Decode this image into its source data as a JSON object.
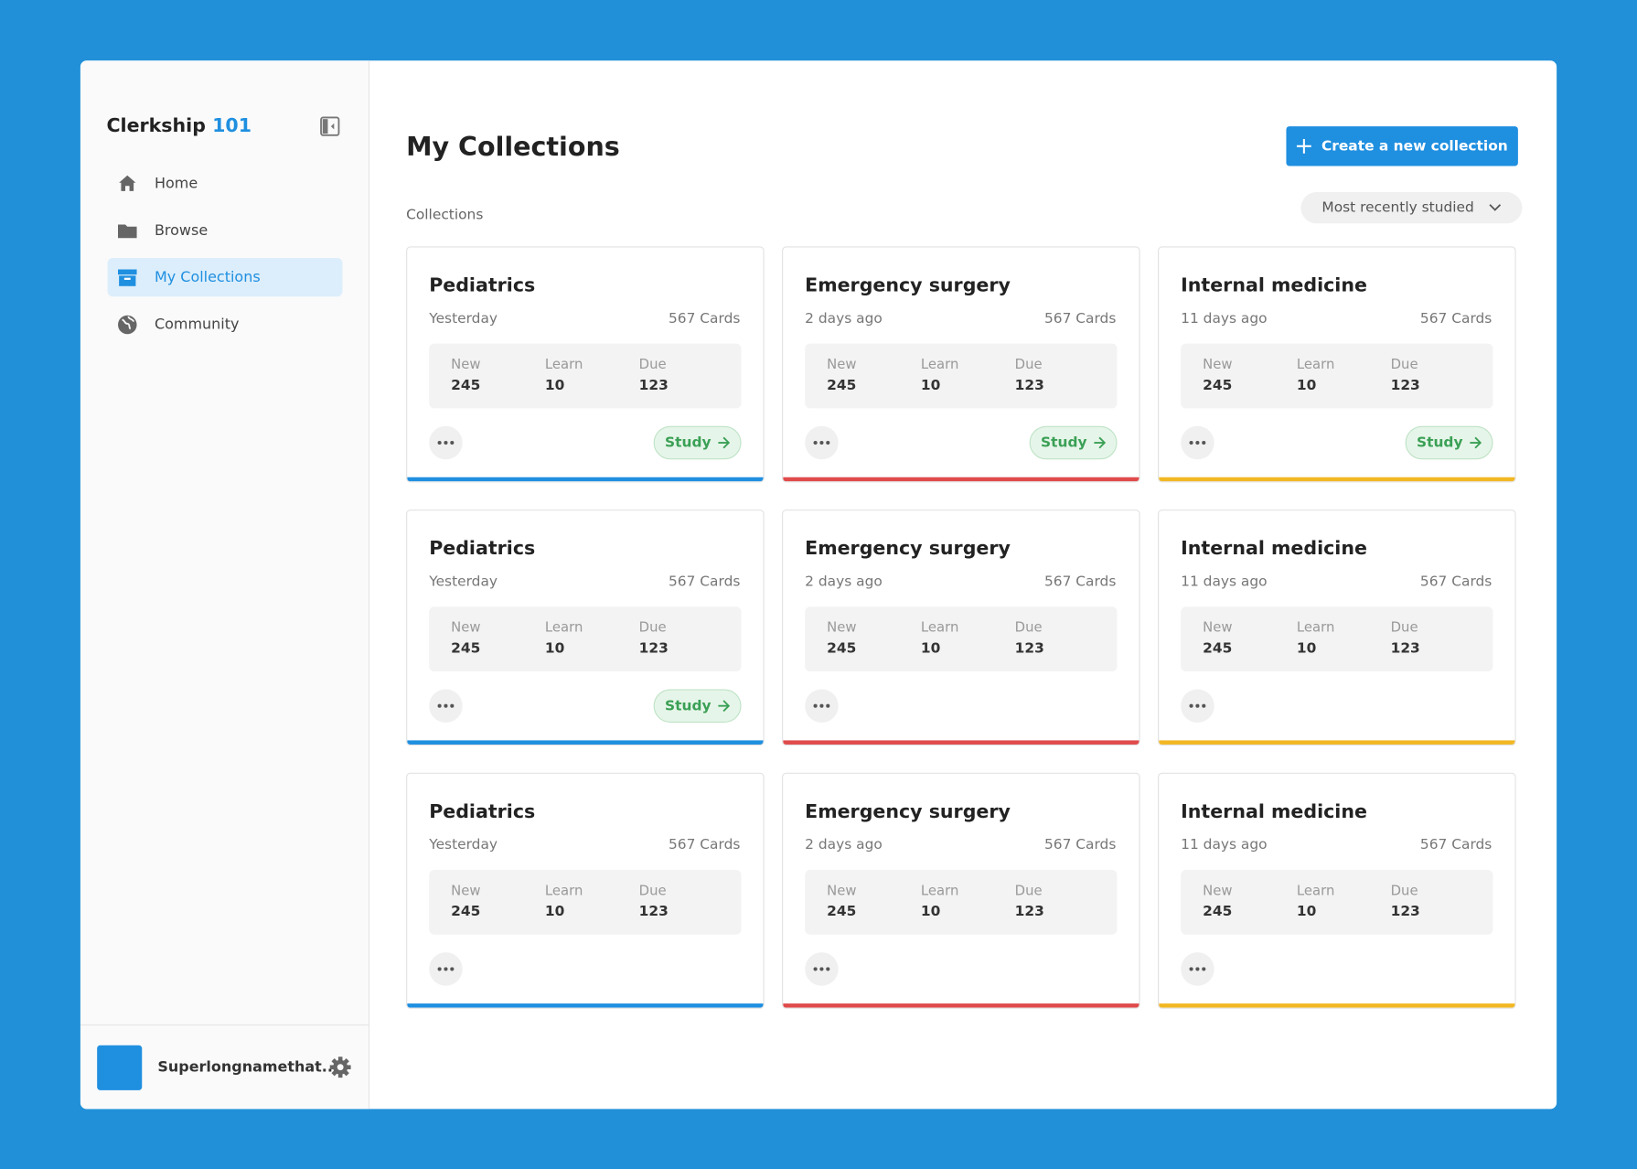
{
  "sidebar": {
    "brand": {
      "name": "Clerkship",
      "accent": "101"
    },
    "nav": [
      {
        "label": "Home",
        "active": false
      },
      {
        "label": "Browse",
        "active": false
      },
      {
        "label": "My Collections",
        "active": true
      },
      {
        "label": "Community",
        "active": false
      }
    ],
    "user": {
      "name": "Superlongnamethat..."
    }
  },
  "header": {
    "title": "My Collections",
    "create_button": "Create a new collection",
    "section_label": "Collections",
    "sort": "Most recently studied"
  },
  "cards": [
    {
      "title": "Pediatrics",
      "date": "Yesterday",
      "count": "567 Cards",
      "color": "#1f8fe0",
      "stats": [
        {
          "label": "New",
          "value": 245
        },
        {
          "label": "Learn",
          "value": 10
        },
        {
          "label": "Due",
          "value": 123
        }
      ],
      "action": "Study"
    },
    {
      "title": "Emergency surgery",
      "date": "2 days ago",
      "count": "567 Cards",
      "color": "#e04b4b",
      "stats": [
        {
          "label": "New",
          "value": 245
        },
        {
          "label": "Learn",
          "value": 10
        },
        {
          "label": "Due",
          "value": 123
        }
      ],
      "action": "Study"
    },
    {
      "title": "Internal medicine",
      "date": "11 days ago",
      "count": "567 Cards",
      "color": "#f2b824",
      "stats": [
        {
          "label": "New",
          "value": 245
        },
        {
          "label": "Learn",
          "value": 10
        },
        {
          "label": "Due",
          "value": 123
        }
      ],
      "action": "Study"
    },
    {
      "title": "Pediatrics",
      "date": "Yesterday",
      "count": "567 Cards",
      "color": "#1f8fe0",
      "stats": [
        {
          "label": "New",
          "value": 245
        },
        {
          "label": "Learn",
          "value": 10
        },
        {
          "label": "Due",
          "value": 123
        }
      ],
      "action": "Study"
    },
    {
      "title": "Emergency surgery",
      "date": "2 days ago",
      "count": "567 Cards",
      "color": "#e04b4b",
      "stats": [
        {
          "label": "New",
          "value": 245
        },
        {
          "label": "Learn",
          "value": 10
        },
        {
          "label": "Due",
          "value": 123
        }
      ]
    },
    {
      "title": "Internal medicine",
      "date": "11 days ago",
      "count": "567 Cards",
      "color": "#f2b824",
      "stats": [
        {
          "label": "New",
          "value": 245
        },
        {
          "label": "Learn",
          "value": 10
        },
        {
          "label": "Due",
          "value": 123
        }
      ]
    },
    {
      "title": "Pediatrics",
      "date": "Yesterday",
      "count": "567 Cards",
      "color": "#1f8fe0",
      "stats": [
        {
          "label": "New",
          "value": 245
        },
        {
          "label": "Learn",
          "value": 10
        },
        {
          "label": "Due",
          "value": 123
        }
      ]
    },
    {
      "title": "Emergency surgery",
      "date": "2 days ago",
      "count": "567 Cards",
      "color": "#e04b4b",
      "stats": [
        {
          "label": "New",
          "value": 245
        },
        {
          "label": "Learn",
          "value": 10
        },
        {
          "label": "Due",
          "value": 123
        }
      ]
    },
    {
      "title": "Internal medicine",
      "date": "11 days ago",
      "count": "567 Cards",
      "color": "#f2b824",
      "stats": [
        {
          "label": "New",
          "value": 245
        },
        {
          "label": "Learn",
          "value": 10
        },
        {
          "label": "Due",
          "value": 123
        }
      ]
    }
  ]
}
